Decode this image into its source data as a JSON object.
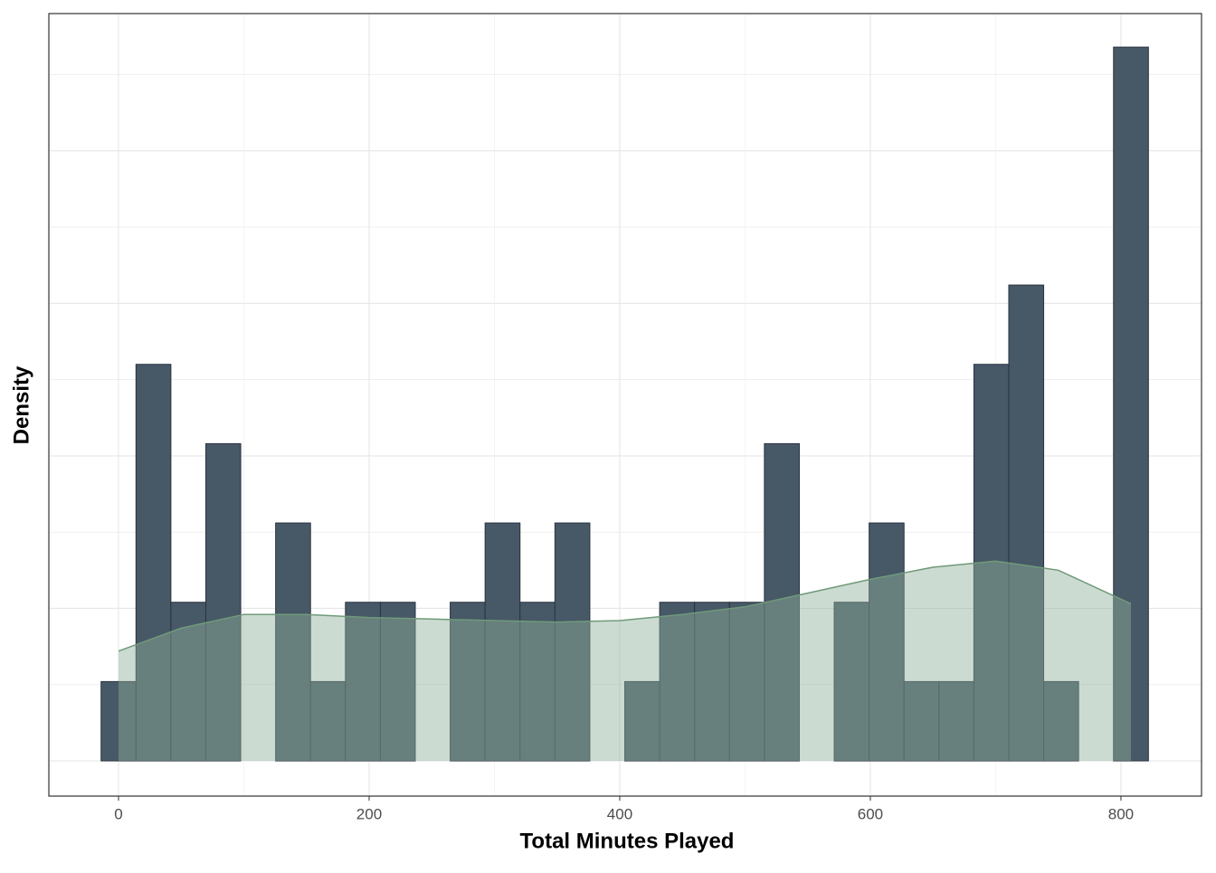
{
  "chart_data": {
    "type": "histogram",
    "xlabel": "Total Minutes Played",
    "ylabel": "Density",
    "bins": [
      -13.93,
      13.93,
      41.79,
      69.66,
      97.52,
      125.38,
      153.24,
      181.1,
      208.97,
      236.83,
      264.69,
      292.55,
      320.41,
      348.28,
      376.14,
      404.0,
      431.86,
      459.72,
      487.59,
      515.45,
      543.31,
      571.17,
      599.03,
      626.9,
      654.76,
      682.62,
      710.48,
      738.34,
      766.21,
      794.07,
      821.93
    ],
    "values": [
      0.00052,
      0.0026,
      0.00104,
      0.00208,
      0,
      0.00156,
      0.00052,
      0.00104,
      0.00104,
      0,
      0.00104,
      0.00156,
      0.00104,
      0.00156,
      0,
      0.00052,
      0.00104,
      0.00104,
      0.00104,
      0.00208,
      0,
      0.00104,
      0.00156,
      0.00052,
      0.00052,
      0.0026,
      0.00312,
      0.00052,
      0,
      0.00468
    ],
    "color": "#475867",
    "edge_color": "#2b3340",
    "density": {
      "x": [
        0,
        50,
        100,
        150,
        200,
        250,
        300,
        350,
        400,
        450,
        500,
        550,
        600,
        650,
        700,
        750,
        808
      ],
      "y": [
        0.00072,
        0.00087,
        0.00096,
        0.00096,
        0.00094,
        0.00093,
        0.00092,
        0.00091,
        0.00092,
        0.00096,
        0.00101,
        0.0011,
        0.00119,
        0.00127,
        0.00131,
        0.00125,
        0.00103
      ],
      "color": "#8fb09a",
      "line_color": "#6f9a7a"
    },
    "xlim": [
      -55.6,
      864.3
    ],
    "xticks": [
      0,
      200,
      400,
      600,
      800
    ],
    "xminor": [
      100,
      300,
      500,
      700
    ],
    "ylim": [
      -0.000231,
      0.0049
    ],
    "ygrid": [
      0,
      0.0005,
      0.001,
      0.0015,
      0.002,
      0.0025,
      0.003,
      0.0035,
      0.004,
      0.0045
    ],
    "grid": true
  }
}
